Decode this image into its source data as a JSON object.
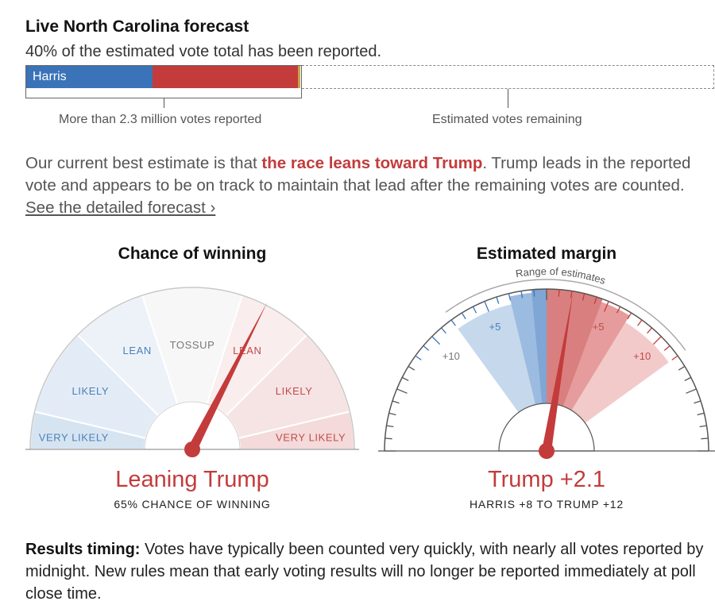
{
  "header": {
    "title": "Live North Carolina forecast",
    "subtitle": "40% of the estimated vote total has been reported."
  },
  "progress": {
    "reported_fraction": 0.4,
    "harris_share_of_reported": 0.46,
    "trump_share_of_reported": 0.53,
    "harris_label": "Harris",
    "reported_label": "More than 2.3 million votes reported",
    "remaining_label": "Estimated votes remaining",
    "colors": {
      "harris": "#3b73b9",
      "trump": "#c33b3b",
      "other": "#c9a44a"
    }
  },
  "summary": {
    "prefix": "Our current best estimate is that ",
    "highlight": "the race leans toward Trump",
    "suffix": ". Trump leads in the reported vote and appears to be on track to maintain that lead after the remaining votes are counted. ",
    "link": "See the detailed forecast ›"
  },
  "chance": {
    "title": "Chance of winning",
    "result": "Leaning Trump",
    "result_sub": "65% CHANCE OF WINNING"
  },
  "margin": {
    "title": "Estimated margin",
    "range_label": "Range of estimates",
    "result": "Trump +2.1",
    "result_sub": "HARRIS +8 TO TRUMP +12"
  },
  "chart_data": [
    {
      "type": "gauge",
      "title": "Chance of winning",
      "scale": [
        -100,
        100
      ],
      "zones": [
        {
          "label": "VERY LIKELY",
          "from": -100,
          "to": -85,
          "party": "D"
        },
        {
          "label": "LIKELY",
          "from": -85,
          "to": -50,
          "party": "D"
        },
        {
          "label": "LEAN",
          "from": -50,
          "to": -20,
          "party": "D"
        },
        {
          "label": "TOSSUP",
          "from": -20,
          "to": 20,
          "party": "N"
        },
        {
          "label": "LEAN",
          "from": 20,
          "to": 50,
          "party": "R"
        },
        {
          "label": "LIKELY",
          "from": 50,
          "to": 85,
          "party": "R"
        },
        {
          "label": "VERY LIKELY",
          "from": 85,
          "to": 100,
          "party": "R"
        }
      ],
      "needle_value": 30,
      "trump_chance_pct": 65
    },
    {
      "type": "gauge",
      "title": "Estimated margin",
      "scale": [
        -20,
        20
      ],
      "tick_labels": [
        {
          "value": -10,
          "label": "+10",
          "party": "D"
        },
        {
          "value": -5,
          "label": "+5",
          "party": "D"
        },
        {
          "value": 5,
          "label": "+5",
          "party": "R"
        },
        {
          "value": 10,
          "label": "+10",
          "party": "R"
        }
      ],
      "bands": [
        {
          "from": -8,
          "to": 12,
          "level": "outer"
        },
        {
          "from": -3,
          "to": 7,
          "level": "middle"
        },
        {
          "from": -1.2,
          "to": 4.5,
          "level": "inner"
        }
      ],
      "needle_value": 2.1,
      "range": [
        -8,
        12
      ],
      "range_label": "Range of estimates"
    }
  ],
  "footer": {
    "label": "Results timing:",
    "text": " Votes have typically been counted very quickly, with nearly all votes reported by midnight. New rules mean that early voting results will no longer be reported immediately at poll close time."
  }
}
